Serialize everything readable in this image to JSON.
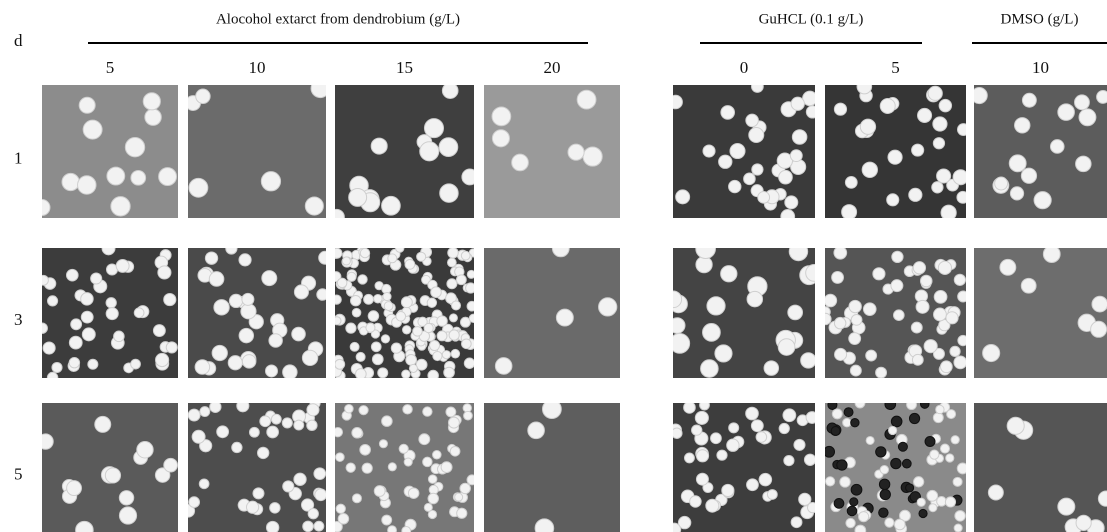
{
  "corner": "d",
  "groups": [
    {
      "label": "Alocohol extarct from dendrobium (g/L)",
      "columns": [
        "5",
        "10",
        "15",
        "20"
      ]
    },
    {
      "label": "GuHCL (0.1 g/L)",
      "columns": [
        "0",
        "5"
      ]
    },
    {
      "label": "DMSO (g/L)",
      "columns": [
        "10"
      ]
    }
  ],
  "rows": [
    "1",
    "3",
    "5"
  ]
}
